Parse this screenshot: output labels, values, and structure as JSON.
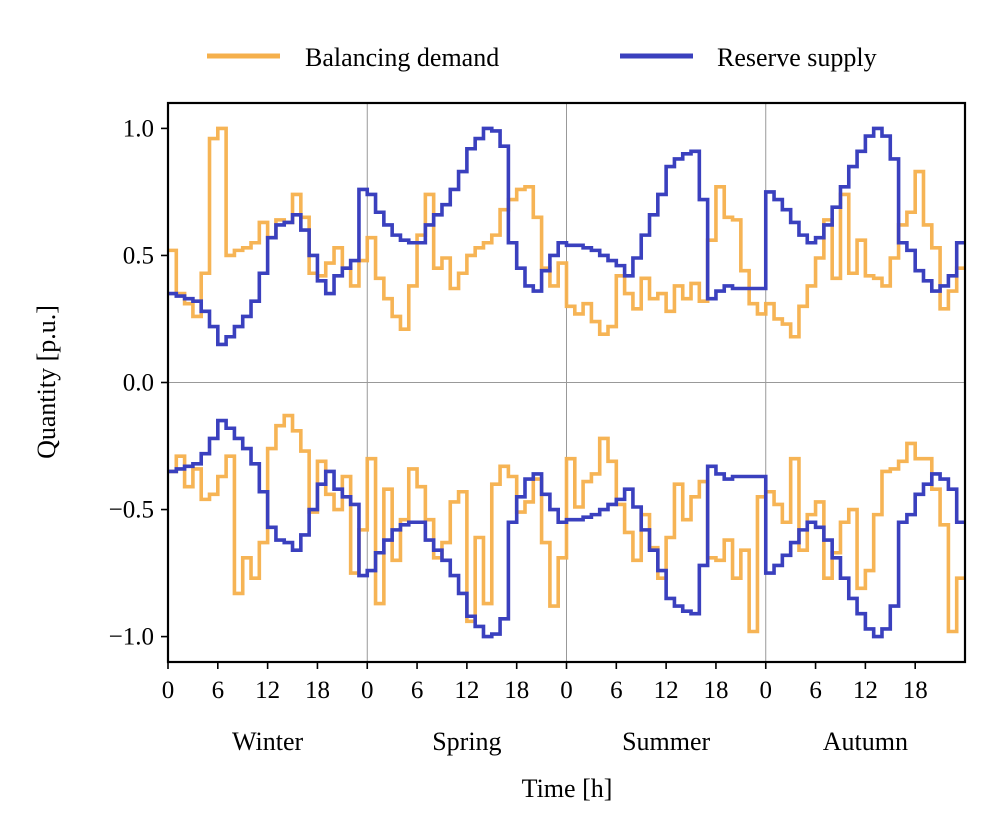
{
  "chart_data": {
    "type": "line",
    "step": true,
    "xlabel": "Time [h]",
    "ylabel": "Quantity [p.u.]",
    "ylim": [
      -1.1,
      1.1
    ],
    "yticks": [
      -1.0,
      -0.5,
      0.0,
      0.5,
      1.0
    ],
    "ytick_labels": [
      "−1.0",
      "−0.5",
      "0.0",
      "0.5",
      "1.0"
    ],
    "hours_per_season": 24,
    "hour_ticks": [
      "0",
      "6",
      "12",
      "18"
    ],
    "hour_tick_values": [
      0,
      6,
      12,
      18
    ],
    "seasons": [
      "Winter",
      "Spring",
      "Summer",
      "Autumn"
    ],
    "grid": true,
    "legend": {
      "placement": "top-center, above plot",
      "ncol": 2
    },
    "colors": {
      "Balancing demand": "#f5b04c",
      "Reserve supply": "#3a40be"
    },
    "series": [
      {
        "name": "Balancing demand",
        "color": "#f5b04c",
        "upper": [
          0.52,
          0.35,
          0.31,
          0.26,
          0.43,
          0.96,
          1.0,
          0.5,
          0.52,
          0.53,
          0.55,
          0.63,
          0.57,
          0.64,
          0.63,
          0.74,
          0.65,
          0.43,
          0.42,
          0.47,
          0.53,
          0.45,
          0.38,
          0.48,
          0.57,
          0.41,
          0.33,
          0.26,
          0.21,
          0.38,
          0.58,
          0.74,
          0.45,
          0.49,
          0.37,
          0.43,
          0.5,
          0.53,
          0.55,
          0.58,
          0.68,
          0.72,
          0.76,
          0.77,
          0.65,
          0.45,
          0.38,
          0.47,
          0.3,
          0.27,
          0.31,
          0.24,
          0.19,
          0.22,
          0.42,
          0.35,
          0.29,
          0.41,
          0.33,
          0.35,
          0.28,
          0.38,
          0.33,
          0.39,
          0.32,
          0.56,
          0.77,
          0.65,
          0.64,
          0.44,
          0.31,
          0.27,
          0.31,
          0.25,
          0.23,
          0.18,
          0.3,
          0.38,
          0.49,
          0.64,
          0.41,
          0.74,
          0.43,
          0.56,
          0.42,
          0.41,
          0.38,
          0.49,
          0.62,
          0.67,
          0.83,
          0.62,
          0.53,
          0.29,
          0.36,
          0.45
        ],
        "lower": [
          -0.35,
          -0.29,
          -0.41,
          -0.34,
          -0.46,
          -0.44,
          -0.37,
          -0.29,
          -0.83,
          -0.69,
          -0.77,
          -0.63,
          -0.26,
          -0.17,
          -0.13,
          -0.19,
          -0.27,
          -0.51,
          -0.31,
          -0.44,
          -0.5,
          -0.37,
          -0.75,
          -0.58,
          -0.3,
          -0.87,
          -0.42,
          -0.7,
          -0.54,
          -0.34,
          -0.41,
          -0.54,
          -0.69,
          -0.63,
          -0.47,
          -0.43,
          -0.94,
          -0.61,
          -0.87,
          -0.4,
          -0.33,
          -0.37,
          -0.51,
          -0.47,
          -0.38,
          -0.63,
          -0.88,
          -0.69,
          -0.3,
          -0.49,
          -0.39,
          -0.36,
          -0.22,
          -0.31,
          -0.48,
          -0.59,
          -0.7,
          -0.52,
          -0.65,
          -0.77,
          -0.61,
          -0.4,
          -0.54,
          -0.45,
          -0.39,
          -0.69,
          -0.7,
          -0.62,
          -0.77,
          -0.66,
          -0.98,
          -0.45,
          -0.43,
          -0.48,
          -0.55,
          -0.3,
          -0.66,
          -0.52,
          -0.47,
          -0.77,
          -0.67,
          -0.55,
          -0.5,
          -0.81,
          -0.74,
          -0.52,
          -0.35,
          -0.34,
          -0.31,
          -0.24,
          -0.3,
          -0.3,
          -0.42,
          -0.56,
          -0.98,
          -0.77
        ]
      },
      {
        "name": "Reserve supply",
        "color": "#3a40be",
        "upper": [
          0.35,
          0.34,
          0.33,
          0.32,
          0.28,
          0.22,
          0.15,
          0.18,
          0.22,
          0.26,
          0.32,
          0.43,
          0.57,
          0.62,
          0.63,
          0.66,
          0.6,
          0.5,
          0.4,
          0.35,
          0.42,
          0.45,
          0.48,
          0.76,
          0.74,
          0.67,
          0.62,
          0.58,
          0.56,
          0.55,
          0.55,
          0.62,
          0.66,
          0.7,
          0.76,
          0.83,
          0.92,
          0.96,
          1.0,
          0.99,
          0.93,
          0.55,
          0.45,
          0.38,
          0.36,
          0.44,
          0.5,
          0.55,
          0.54,
          0.54,
          0.53,
          0.52,
          0.5,
          0.48,
          0.46,
          0.42,
          0.49,
          0.58,
          0.66,
          0.74,
          0.85,
          0.88,
          0.9,
          0.91,
          0.72,
          0.33,
          0.36,
          0.38,
          0.37,
          0.37,
          0.37,
          0.37,
          0.75,
          0.72,
          0.68,
          0.63,
          0.58,
          0.55,
          0.57,
          0.62,
          0.69,
          0.77,
          0.85,
          0.91,
          0.97,
          1.0,
          0.97,
          0.88,
          0.55,
          0.52,
          0.44,
          0.4,
          0.36,
          0.38,
          0.42,
          0.55
        ],
        "lower": [
          -0.35,
          -0.34,
          -0.33,
          -0.32,
          -0.28,
          -0.22,
          -0.15,
          -0.18,
          -0.22,
          -0.26,
          -0.32,
          -0.43,
          -0.57,
          -0.62,
          -0.63,
          -0.66,
          -0.6,
          -0.5,
          -0.4,
          -0.35,
          -0.42,
          -0.45,
          -0.48,
          -0.76,
          -0.74,
          -0.67,
          -0.62,
          -0.58,
          -0.56,
          -0.55,
          -0.55,
          -0.62,
          -0.66,
          -0.7,
          -0.76,
          -0.83,
          -0.92,
          -0.96,
          -1.0,
          -0.99,
          -0.93,
          -0.55,
          -0.45,
          -0.38,
          -0.36,
          -0.44,
          -0.5,
          -0.55,
          -0.54,
          -0.54,
          -0.53,
          -0.52,
          -0.5,
          -0.48,
          -0.46,
          -0.42,
          -0.49,
          -0.58,
          -0.66,
          -0.74,
          -0.85,
          -0.88,
          -0.9,
          -0.91,
          -0.72,
          -0.33,
          -0.36,
          -0.38,
          -0.37,
          -0.37,
          -0.37,
          -0.37,
          -0.75,
          -0.72,
          -0.68,
          -0.63,
          -0.58,
          -0.55,
          -0.57,
          -0.62,
          -0.69,
          -0.77,
          -0.85,
          -0.91,
          -0.97,
          -1.0,
          -0.97,
          -0.88,
          -0.55,
          -0.52,
          -0.44,
          -0.4,
          -0.36,
          -0.38,
          -0.42,
          -0.55
        ]
      }
    ]
  }
}
